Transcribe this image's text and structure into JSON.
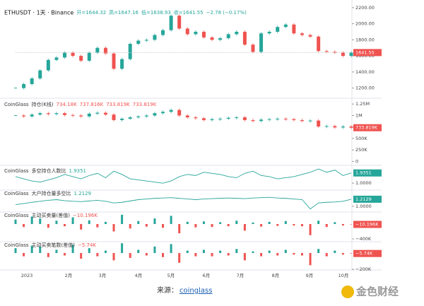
{
  "chart_data": [
    {
      "type": "candlestick",
      "title": "ETHUSDT · 1天 · Binance",
      "legend": [
        "开=1644.32",
        "高=1647.16",
        "低=1638.93",
        "收=1641.55",
        "−2.78 (−0.17%)"
      ],
      "values": [
        1200,
        1250,
        1320,
        1420,
        1550,
        1580,
        1640,
        1600,
        1540,
        1640,
        1700,
        1630,
        1440,
        1560,
        1750,
        1790,
        1800,
        1860,
        1920,
        2100,
        1940,
        1870,
        1900,
        1830,
        1800,
        1820,
        1870,
        1900,
        1740,
        1650,
        1880,
        1900,
        1960,
        1990,
        1880,
        1860,
        1840,
        1660,
        1650,
        1640,
        1600,
        1641.55
      ],
      "current_label": "1641.55",
      "ylim": [
        1100,
        2260
      ],
      "yticks": [
        {
          "value": 1200,
          "label": "1200.00"
        },
        {
          "value": 1400,
          "label": "1400.00"
        },
        {
          "value": 1600,
          "label": "1600.00"
        },
        {
          "value": 1800,
          "label": "1800.00"
        },
        {
          "value": 2000,
          "label": "2000.00"
        },
        {
          "value": 2200,
          "label": "2200.00"
        }
      ]
    },
    {
      "type": "candlestick",
      "title": "CoinGlass",
      "name": "持仓(K线)",
      "legend": [
        "734.18K",
        "737.816K",
        "733.819K",
        "733.819K"
      ],
      "values": [
        1000000,
        980000,
        1020000,
        1050000,
        1030000,
        1050000,
        1010000,
        1000000,
        980000,
        1040000,
        1060000,
        1020000,
        900000,
        930000,
        960000,
        980000,
        1000000,
        1050000,
        1080000,
        1120000,
        1000000,
        960000,
        940000,
        900000,
        920000,
        930000,
        950000,
        960000,
        900000,
        880000,
        910000,
        920000,
        930000,
        920000,
        900000,
        880000,
        890000,
        760000,
        770000,
        740000,
        760000,
        733819
      ],
      "current_label": "733.819K",
      "ylim": [
        -40000,
        1330000
      ],
      "yticks": [
        0,
        {
          "value": 250000,
          "label": "250K"
        },
        {
          "value": 500000,
          "label": "500K"
        },
        {
          "value": 750000,
          "label": "750K"
        },
        {
          "value": 1000000,
          "label": "1M"
        },
        {
          "value": 1250000,
          "label": "1.25M"
        }
      ]
    },
    {
      "type": "line",
      "title": "CoinGlass",
      "name": "多空持仓人数比",
      "legend": [
        "1.9351"
      ],
      "values": [
        1.6,
        1.4,
        1.2,
        1.1,
        1.3,
        1.5,
        1.8,
        1.6,
        1.4,
        1.7,
        1.9,
        1.5,
        2.1,
        1.8,
        1.4,
        1.3,
        1.2,
        1.1,
        1.0,
        1.2,
        1.6,
        1.8,
        1.7,
        2.0,
        1.9,
        1.8,
        1.6,
        1.5,
        1.9,
        2.1,
        1.7,
        1.6,
        1.4,
        1.5,
        1.6,
        1.8,
        2.0,
        2.3,
        2.0,
        2.2,
        1.7,
        1.9351
      ],
      "current_label": "1.9351",
      "ylim": [
        0.56,
        2.5
      ],
      "yticks": [
        {
          "value": 1,
          "label": "1.0000"
        }
      ]
    },
    {
      "type": "line",
      "title": "CoinGlass",
      "name": "大户持仓量多空比",
      "legend": [
        "1.2129"
      ],
      "values": [
        1.05,
        1.08,
        1.12,
        1.15,
        1.18,
        1.2,
        1.17,
        1.15,
        1.14,
        1.16,
        1.18,
        1.15,
        1.1,
        1.12,
        1.16,
        1.2,
        1.22,
        1.24,
        1.25,
        1.26,
        1.24,
        1.22,
        1.2,
        1.22,
        1.23,
        1.24,
        1.25,
        1.24,
        1.23,
        1.25,
        1.26,
        1.27,
        1.25,
        1.24,
        1.22,
        1.2,
        0.92,
        1.1,
        1.12,
        1.13,
        1.15,
        1.2129
      ],
      "current_label": "1.2129",
      "ylim": [
        0.89,
        1.51
      ],
      "yticks": [
        {
          "value": 1,
          "label": "1.0000"
        }
      ]
    },
    {
      "type": "bar",
      "title": "CoinGlass",
      "name": "主动买卖量(差值)",
      "legend": [
        "−10.196K"
      ],
      "values": [
        120000,
        -80000,
        200000,
        150000,
        -100000,
        90000,
        -60000,
        180000,
        -150000,
        100000,
        -90000,
        60000,
        -200000,
        250000,
        -120000,
        80000,
        -70000,
        150000,
        -100000,
        220000,
        -250000,
        60000,
        -90000,
        70000,
        -80000,
        50000,
        -60000,
        90000,
        -180000,
        40000,
        -70000,
        60000,
        -50000,
        80000,
        -40000,
        -60000,
        -300000,
        90000,
        -80000,
        50000,
        -40000,
        -10196
      ],
      "current_label": "−10.196K",
      "ylim": [
        -419000,
        343000
      ],
      "yticks": [
        {
          "value": -400000,
          "label": "−400K"
        }
      ]
    },
    {
      "type": "bar",
      "title": "CoinGlass",
      "name": "主动买卖笔数(差值)",
      "legend": [
        "−5.74K"
      ],
      "values": [
        60000,
        -40000,
        90000,
        80000,
        -50000,
        40000,
        -30000,
        100000,
        -70000,
        60000,
        -40000,
        30000,
        -90000,
        120000,
        -60000,
        40000,
        -30000,
        80000,
        -50000,
        110000,
        -120000,
        30000,
        -40000,
        40000,
        -40000,
        30000,
        -30000,
        50000,
        -90000,
        20000,
        -40000,
        30000,
        -30000,
        40000,
        -20000,
        -30000,
        -150000,
        50000,
        -40000,
        30000,
        -20000,
        -5740
      ],
      "current_label": "−5.74K",
      "ylim": [
        -182000,
        148000
      ],
      "yticks": [
        {
          "value": -200000,
          "label": "−200K"
        }
      ]
    }
  ],
  "x_axis_labels": [
    "2023",
    "2月",
    "3月",
    "4月",
    "5月",
    "6月",
    "7月",
    "8月",
    "9月",
    "10月"
  ],
  "footer": {
    "label": "来源：",
    "link": "coinglass"
  },
  "watermark": "金色财经"
}
